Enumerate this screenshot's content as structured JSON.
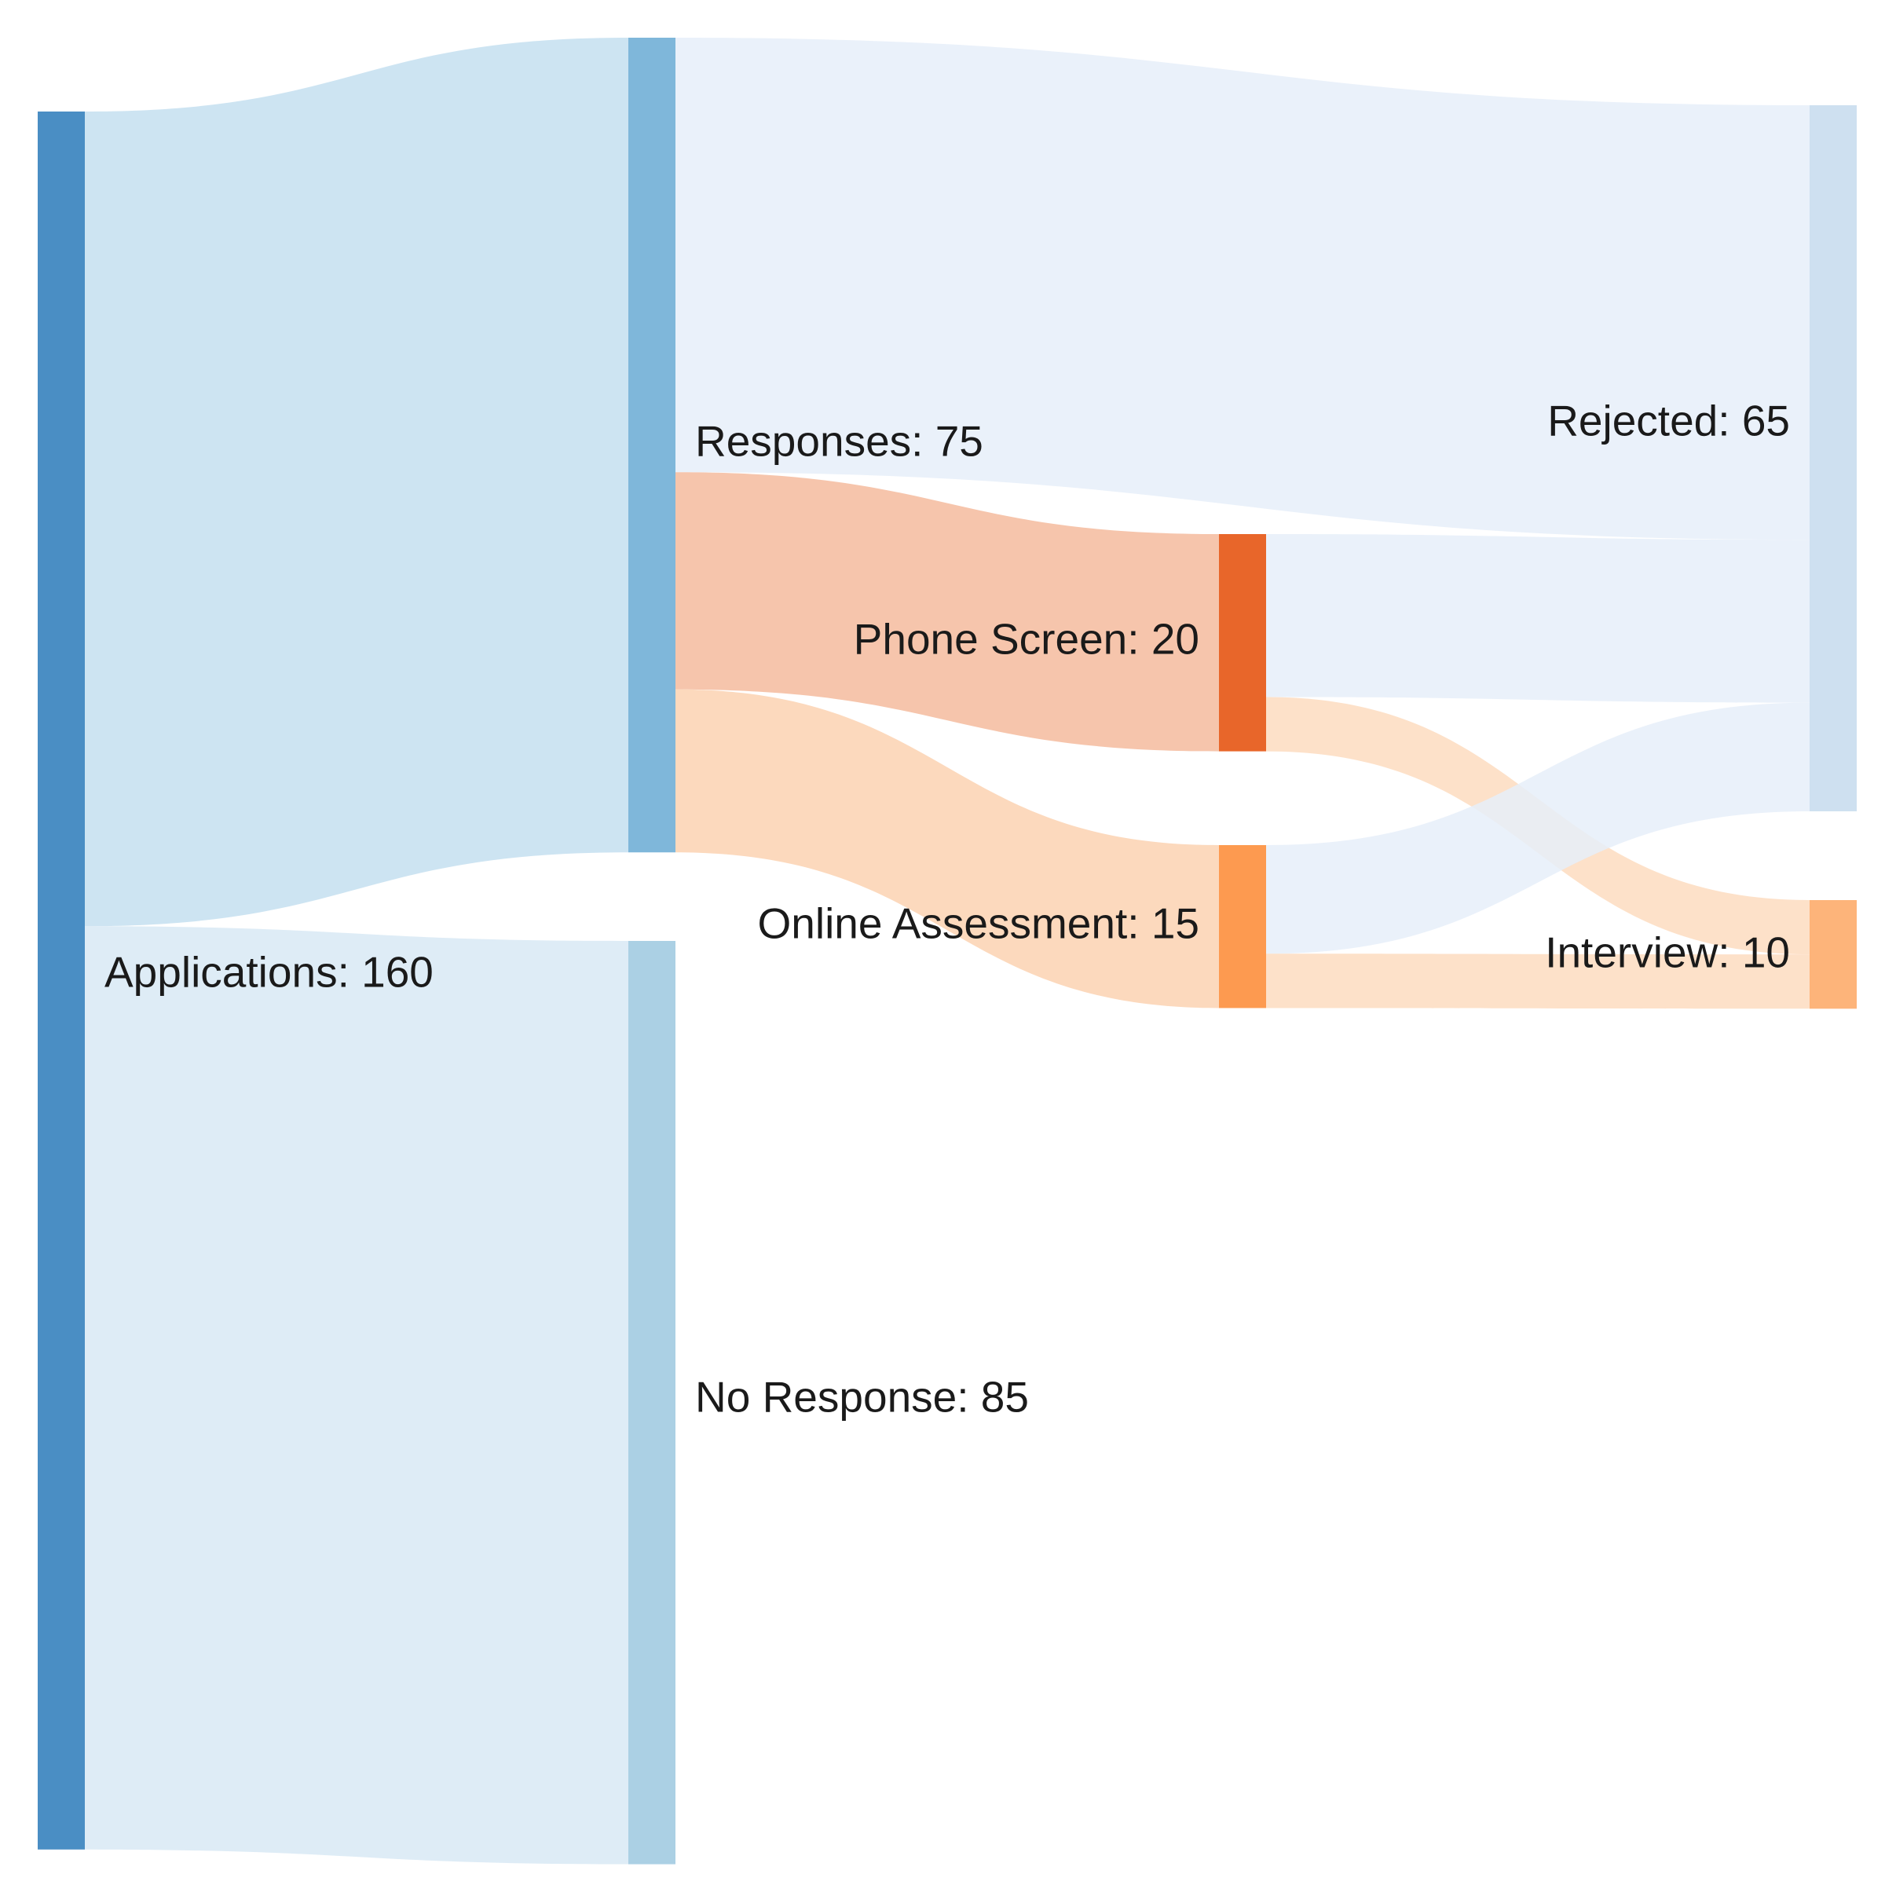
{
  "chart_data": {
    "type": "sankey",
    "nodes": [
      {
        "id": "applications",
        "name": "Applications",
        "value": 160,
        "label": "Applications: 160",
        "color": "#4a8ec4"
      },
      {
        "id": "responses",
        "name": "Responses",
        "value": 75,
        "label": "Responses: 75",
        "color": "#7fb7da"
      },
      {
        "id": "no_response",
        "name": "No Response",
        "value": 85,
        "label": "No Response: 85",
        "color": "#abd0e4"
      },
      {
        "id": "phone_screen",
        "name": "Phone Screen",
        "value": 20,
        "label": "Phone Screen: 20",
        "color": "#e8662a"
      },
      {
        "id": "online_assessment",
        "name": "Online Assessment",
        "value": 15,
        "label": "Online Assessment: 15",
        "color": "#fd9a50"
      },
      {
        "id": "rejected",
        "name": "Rejected",
        "value": 65,
        "label": "Rejected: 65",
        "color": "#cee0f0"
      },
      {
        "id": "interview",
        "name": "Interview",
        "value": 10,
        "label": "Interview: 10",
        "color": "#fdb47a"
      }
    ],
    "links": [
      {
        "source": "applications",
        "target": "responses",
        "value": 75,
        "color": "#c4dff0"
      },
      {
        "source": "applications",
        "target": "no_response",
        "value": 85,
        "color": "#d8e9f4"
      },
      {
        "source": "responses",
        "target": "rejected",
        "value": 40,
        "color": "#e6eff9"
      },
      {
        "source": "responses",
        "target": "phone_screen",
        "value": 20,
        "color": "#f5bb9d"
      },
      {
        "source": "responses",
        "target": "online_assessment",
        "value": 15,
        "color": "#fcd2b1"
      },
      {
        "source": "phone_screen",
        "target": "rejected",
        "value": 15,
        "color": "#e6eff9"
      },
      {
        "source": "phone_screen",
        "target": "interview",
        "value": 5,
        "color": "#fddcc0"
      },
      {
        "source": "online_assessment",
        "target": "rejected",
        "value": 10,
        "color": "#e6eff9"
      },
      {
        "source": "online_assessment",
        "target": "interview",
        "value": 5,
        "color": "#fddcc0"
      }
    ]
  }
}
